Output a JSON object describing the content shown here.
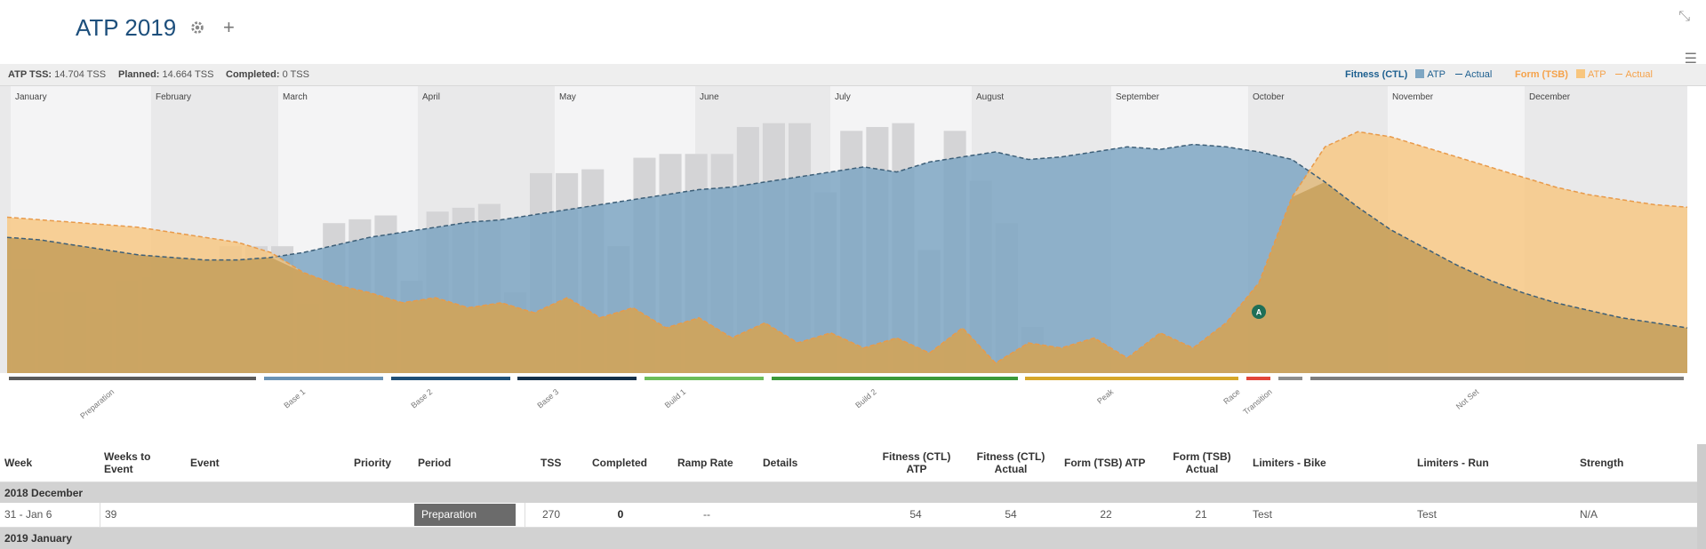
{
  "header": {
    "title": "ATP 2019",
    "settings_icon": "gear-icon",
    "add_icon": "plus-icon",
    "collapse_icon": "collapse-arrows-icon",
    "menu_icon": "hamburger-menu-icon"
  },
  "stats": {
    "atp_label": "ATP TSS:",
    "atp_value": "14.704 TSS",
    "planned_label": "Planned:",
    "planned_value": "14.664 TSS",
    "completed_label": "Completed:",
    "completed_value": "0 TSS"
  },
  "legend": {
    "fitness_label": "Fitness (CTL)",
    "fitness_atp": "ATP",
    "fitness_actual": "Actual",
    "form_label": "Form (TSB)",
    "form_atp": "ATP",
    "form_actual": "Actual",
    "fitness_color": "#1d5f8f",
    "fitness_fill": "#7ea6c3",
    "form_color": "#f5a24a",
    "form_fill": "#f8c67e"
  },
  "chart_data": {
    "type": "bar",
    "months": [
      "January",
      "February",
      "March",
      "April",
      "May",
      "June",
      "July",
      "August",
      "September",
      "October",
      "November",
      "December"
    ],
    "weekly_tss": [
      270,
      210,
      210,
      160,
      240,
      250,
      250,
      230,
      330,
      330,
      330,
      180,
      390,
      400,
      410,
      240,
      420,
      430,
      440,
      210,
      520,
      520,
      530,
      330,
      560,
      570,
      570,
      570,
      640,
      650,
      650,
      470,
      630,
      640,
      650,
      320,
      630,
      500,
      390,
      120
    ],
    "fitness_ctl_atp": [
      54,
      53,
      51,
      49,
      47,
      46,
      45,
      45,
      46,
      48,
      51,
      54,
      56,
      58,
      60,
      61,
      63,
      65,
      67,
      69,
      71,
      73,
      74,
      76,
      78,
      80,
      82,
      80,
      84,
      86,
      88,
      85,
      86,
      88,
      90,
      89,
      91,
      90,
      88,
      85,
      76,
      66,
      57,
      50,
      43,
      37,
      32,
      28,
      25,
      22,
      20,
      18
    ],
    "form_tsb_atp": [
      22,
      21,
      20,
      19,
      18,
      16,
      14,
      12,
      8,
      0,
      -5,
      -8,
      -12,
      -10,
      -14,
      -12,
      -16,
      -10,
      -18,
      -14,
      -22,
      -18,
      -26,
      -20,
      -28,
      -24,
      -30,
      -26,
      -32,
      -22,
      -36,
      -28,
      -30,
      -26,
      -34,
      -24,
      -30,
      -20,
      -4,
      30,
      50,
      56,
      54,
      50,
      46,
      42,
      38,
      34,
      31,
      29,
      27,
      26
    ],
    "periods": [
      {
        "name": "Preparation",
        "color": "#5b5b5b"
      },
      {
        "name": "Base 1",
        "color": "#6a93b5"
      },
      {
        "name": "Base 2",
        "color": "#1f5078"
      },
      {
        "name": "Base 3",
        "color": "#14304a"
      },
      {
        "name": "Build 1",
        "color": "#6cbd5a"
      },
      {
        "name": "Build 2",
        "color": "#3c9a3a"
      },
      {
        "name": "Peak",
        "color": "#d6a72b"
      },
      {
        "name": "Race",
        "color": "#e2463a"
      },
      {
        "name": "Transition",
        "color": "#8e8e8e"
      },
      {
        "name": "Not Set",
        "color": "#7d7d7d"
      }
    ],
    "race_marker": "A",
    "race_icon": "trophy-icon",
    "grid": false,
    "legend_position": "top-right"
  },
  "table": {
    "columns": {
      "week": "Week",
      "weeks_to_event": "Weeks to Event",
      "event": "Event",
      "priority": "Priority",
      "period": "Period",
      "tss": "TSS",
      "completed": "Completed",
      "ramp_rate": "Ramp Rate",
      "details": "Details",
      "ctl_atp": "Fitness (CTL) ATP",
      "ctl_actual": "Fitness (CTL) Actual",
      "tsb_atp": "Form (TSB) ATP",
      "tsb_actual": "Form (TSB) Actual",
      "limiters_bike": "Limiters - Bike",
      "limiters_run": "Limiters - Run",
      "strength": "Strength"
    },
    "groups": [
      "2018 December",
      "2019 January"
    ],
    "row": {
      "week": "31 - Jan 6",
      "weeks_to_event": "39",
      "event": "",
      "priority": "",
      "period": "Preparation",
      "tss": "270",
      "completed": "0",
      "ramp_rate": "--",
      "details": "",
      "ctl_atp": "54",
      "ctl_actual": "54",
      "tsb_atp": "22",
      "tsb_actual": "21",
      "limiters_bike": "Test",
      "limiters_run": "Test",
      "strength": "N/A"
    }
  }
}
